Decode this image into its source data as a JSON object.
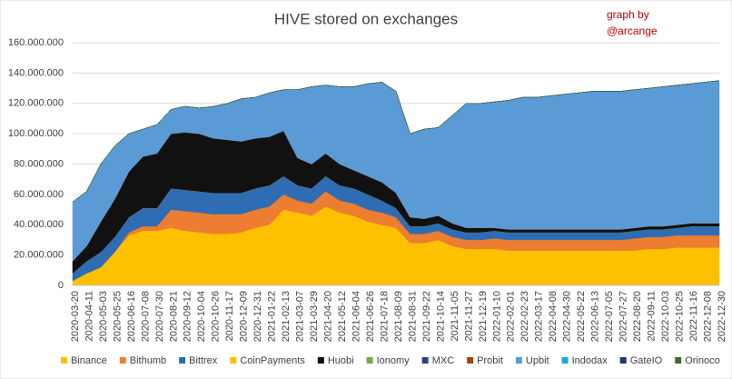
{
  "chart_data": {
    "type": "stacked-area",
    "title": "HIVE stored on exchanges",
    "annotation": "graph by\n@arcange",
    "categories": [
      "2020-03-20",
      "2020-04-11",
      "2020-05-03",
      "2020-05-25",
      "2020-06-16",
      "2020-07-08",
      "2020-07-30",
      "2020-08-21",
      "2020-09-12",
      "2020-10-04",
      "2020-10-26",
      "2020-11-17",
      "2020-12-09",
      "2020-12-31",
      "2021-01-22",
      "2021-02-13",
      "2021-03-07",
      "2021-03-29",
      "2021-04-20",
      "2021-05-12",
      "2021-06-04",
      "2021-06-26",
      "2021-07-18",
      "2021-08-09",
      "2021-08-31",
      "2021-09-22",
      "2021-10-14",
      "2021-11-05",
      "2021-11-27",
      "2021-12-19",
      "2022-01-10",
      "2022-02-01",
      "2022-02-23",
      "2022-03-17",
      "2022-04-08",
      "2022-04-30",
      "2022-05-22",
      "2022-06-13",
      "2022-07-05",
      "2022-07-27",
      "2022-08-20",
      "2022-09-11",
      "2022-10-03",
      "2022-10-25",
      "2022-11-16",
      "2022-12-08",
      "2022-12-30"
    ],
    "ylim": [
      0,
      160000000
    ],
    "yticks": [
      0,
      {
        "value": 20000000,
        "label": "20.000.000"
      },
      {
        "value": 40000000,
        "label": "40.000.000"
      },
      {
        "value": 60000000,
        "label": "60.000.000"
      },
      {
        "value": 80000000,
        "label": "80.000.000"
      },
      {
        "value": 100000000,
        "label": "100.000.000"
      },
      {
        "value": 120000000,
        "label": "120.000.000"
      },
      {
        "value": 140000000,
        "label": "140.000.000"
      },
      {
        "value": 160000000,
        "label": "160.000.000"
      }
    ],
    "grid": true,
    "legend": "bottom",
    "series": [
      {
        "name": "Binance",
        "color": "#ffc000",
        "values": [
          3000000,
          8000000,
          12000000,
          22000000,
          33000000,
          36000000,
          36000000,
          38000000,
          36000000,
          35000000,
          34000000,
          34000000,
          35000000,
          38000000,
          40000000,
          50000000,
          48000000,
          46000000,
          52000000,
          48000000,
          46000000,
          42000000,
          40000000,
          38000000,
          28000000,
          28000000,
          30000000,
          26000000,
          24000000,
          24000000,
          24000000,
          23000000,
          23000000,
          23000000,
          23000000,
          23000000,
          23000000,
          23000000,
          23000000,
          23000000,
          23000000,
          24000000,
          24000000,
          25000000,
          25000000,
          25000000,
          25000000
        ]
      },
      {
        "name": "Bithumb",
        "color": "#ed7d31",
        "values": [
          0,
          0,
          0,
          0,
          2000000,
          3000000,
          3000000,
          12000000,
          13000000,
          13000000,
          13000000,
          13000000,
          12000000,
          12000000,
          12000000,
          10000000,
          8000000,
          8000000,
          10000000,
          8000000,
          8000000,
          8000000,
          8000000,
          7000000,
          6000000,
          6000000,
          6000000,
          6000000,
          6000000,
          6000000,
          7000000,
          7000000,
          7000000,
          7000000,
          7000000,
          7000000,
          7000000,
          7000000,
          7000000,
          7000000,
          8000000,
          8000000,
          8000000,
          8000000,
          8000000,
          8000000,
          8000000
        ]
      },
      {
        "name": "Bittrex",
        "color": "#2e6db4",
        "values": [
          5000000,
          8000000,
          10000000,
          10000000,
          10000000,
          12000000,
          12000000,
          14000000,
          14000000,
          14000000,
          14000000,
          14000000,
          14000000,
          14000000,
          14000000,
          12000000,
          10000000,
          10000000,
          10000000,
          10000000,
          10000000,
          10000000,
          8000000,
          6000000,
          5000000,
          5000000,
          5000000,
          5000000,
          5000000,
          5000000,
          5000000,
          5000000,
          5000000,
          5000000,
          5000000,
          5000000,
          5000000,
          5000000,
          5000000,
          5000000,
          5000000,
          5000000,
          5000000,
          5000000,
          6000000,
          6000000,
          6000000
        ]
      },
      {
        "name": "CoinPayments",
        "color": "#ffc000",
        "values": [
          0,
          0,
          0,
          0,
          0,
          0,
          0,
          0,
          0,
          0,
          0,
          0,
          0,
          0,
          0,
          0,
          0,
          0,
          0,
          0,
          0,
          0,
          0,
          0,
          0,
          0,
          0,
          0,
          0,
          0,
          0,
          0,
          0,
          0,
          0,
          0,
          0,
          0,
          0,
          0,
          0,
          0,
          0,
          0,
          0,
          0,
          0
        ]
      },
      {
        "name": "Huobi",
        "color": "#111111",
        "values": [
          8000000,
          10000000,
          20000000,
          25000000,
          30000000,
          34000000,
          36000000,
          36000000,
          38000000,
          38000000,
          36000000,
          35000000,
          34000000,
          33000000,
          32000000,
          30000000,
          18000000,
          16000000,
          15000000,
          14000000,
          12000000,
          12000000,
          12000000,
          10000000,
          6000000,
          5000000,
          5000000,
          4000000,
          3000000,
          3000000,
          2000000,
          2000000,
          2000000,
          2000000,
          2000000,
          2000000,
          2000000,
          2000000,
          2000000,
          2000000,
          2000000,
          2000000,
          2000000,
          2000000,
          2000000,
          2000000,
          2000000
        ]
      },
      {
        "name": "Ionomy",
        "color": "#70ad47",
        "values": [
          0,
          0,
          0,
          0,
          0,
          0,
          0,
          0,
          0,
          0,
          0,
          0,
          0,
          0,
          0,
          0,
          0,
          0,
          0,
          0,
          0,
          0,
          0,
          0,
          0,
          0,
          0,
          0,
          0,
          0,
          0,
          0,
          0,
          0,
          0,
          0,
          0,
          0,
          0,
          0,
          0,
          0,
          0,
          0,
          0,
          0,
          0
        ]
      },
      {
        "name": "MXC",
        "color": "#264478",
        "values": [
          0,
          0,
          0,
          0,
          0,
          0,
          0,
          0,
          0,
          0,
          0,
          0,
          0,
          0,
          0,
          0,
          0,
          0,
          0,
          0,
          0,
          0,
          0,
          0,
          0,
          0,
          0,
          0,
          0,
          0,
          0,
          0,
          0,
          0,
          0,
          0,
          0,
          0,
          0,
          0,
          0,
          0,
          0,
          0,
          0,
          0,
          0
        ]
      },
      {
        "name": "Probit",
        "color": "#9e480e",
        "values": [
          0,
          0,
          0,
          0,
          0,
          0,
          0,
          0,
          0,
          0,
          0,
          0,
          0,
          0,
          0,
          0,
          0,
          0,
          0,
          0,
          0,
          0,
          0,
          0,
          0,
          0,
          0,
          0,
          0,
          0,
          0,
          0,
          0,
          0,
          0,
          0,
          0,
          0,
          0,
          0,
          0,
          0,
          0,
          0,
          0,
          0,
          0
        ]
      },
      {
        "name": "Upbit",
        "color": "#5b9bd5",
        "values": [
          39000000,
          36000000,
          38000000,
          35000000,
          25000000,
          18000000,
          19000000,
          16000000,
          17000000,
          17000000,
          21000000,
          24000000,
          28000000,
          27000000,
          29000000,
          27000000,
          45000000,
          51000000,
          45000000,
          51000000,
          55000000,
          61000000,
          66000000,
          67000000,
          55000000,
          59000000,
          58000000,
          71000000,
          82000000,
          82000000,
          83000000,
          85000000,
          87000000,
          87000000,
          88000000,
          89000000,
          90000000,
          91000000,
          91000000,
          91000000,
          91000000,
          91000000,
          92000000,
          92000000,
          92000000,
          93000000,
          94000000
        ]
      },
      {
        "name": "Indodax",
        "color": "#1aa9e0",
        "values": [
          0,
          0,
          0,
          0,
          0,
          0,
          0,
          0,
          0,
          0,
          0,
          0,
          0,
          0,
          0,
          0,
          0,
          0,
          0,
          0,
          0,
          0,
          0,
          0,
          0,
          0,
          0,
          0,
          0,
          0,
          0,
          0,
          0,
          0,
          0,
          0,
          0,
          0,
          0,
          0,
          0,
          0,
          0,
          0,
          0,
          0,
          0
        ]
      },
      {
        "name": "GateIO",
        "color": "#203864",
        "values": [
          0,
          0,
          0,
          0,
          0,
          0,
          0,
          0,
          0,
          0,
          0,
          0,
          0,
          0,
          0,
          0,
          0,
          0,
          0,
          0,
          0,
          0,
          0,
          0,
          0,
          0,
          0,
          0,
          0,
          0,
          0,
          0,
          0,
          0,
          0,
          0,
          0,
          0,
          0,
          0,
          0,
          0,
          0,
          0,
          0,
          0,
          0
        ]
      },
      {
        "name": "Orinoco",
        "color": "#43682b",
        "values": [
          0,
          0,
          0,
          0,
          0,
          0,
          0,
          0,
          0,
          0,
          0,
          0,
          0,
          0,
          0,
          0,
          0,
          0,
          0,
          0,
          0,
          0,
          0,
          0,
          0,
          0,
          0,
          0,
          0,
          0,
          0,
          0,
          0,
          0,
          0,
          0,
          0,
          0,
          0,
          0,
          0,
          0,
          0,
          0,
          0,
          0,
          0
        ]
      }
    ]
  }
}
